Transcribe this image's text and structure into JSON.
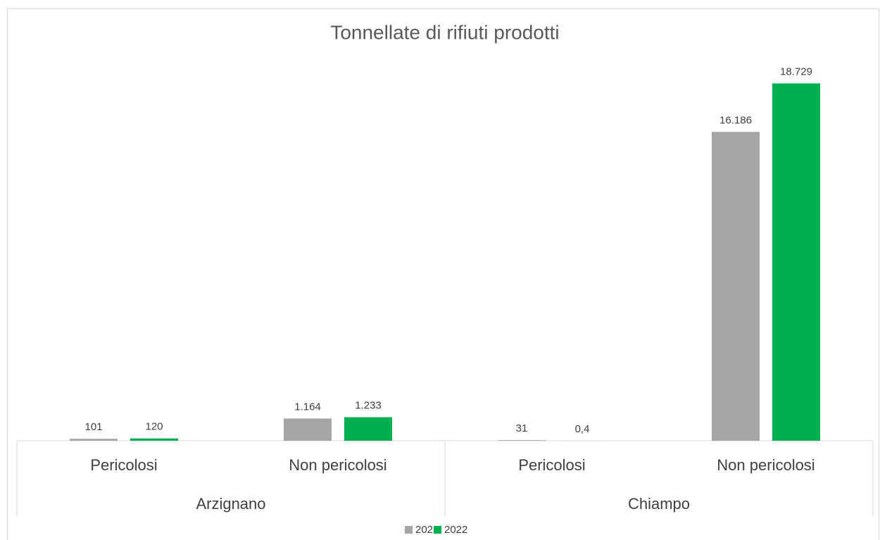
{
  "chart_data": {
    "type": "bar",
    "title": "Tonnellate di rifiuti prodotti",
    "categories": [
      "Pericolosi",
      "Non pericolosi",
      "Pericolosi",
      "Non pericolosi"
    ],
    "groups": [
      "Arzignano",
      "Chiampo"
    ],
    "series": [
      {
        "name": "2021",
        "color": "#a5a5a5",
        "values": [
          101,
          1164,
          31,
          16186
        ],
        "value_labels": [
          "101",
          "1.164",
          "31",
          "16.186"
        ]
      },
      {
        "name": "2022",
        "color": "#00b050",
        "values": [
          120,
          1233,
          0.4,
          18729
        ],
        "value_labels": [
          "120",
          "1.233",
          "0,4",
          "18.729"
        ]
      }
    ],
    "ylim": [
      0,
      20000
    ],
    "legend": "bottom"
  }
}
